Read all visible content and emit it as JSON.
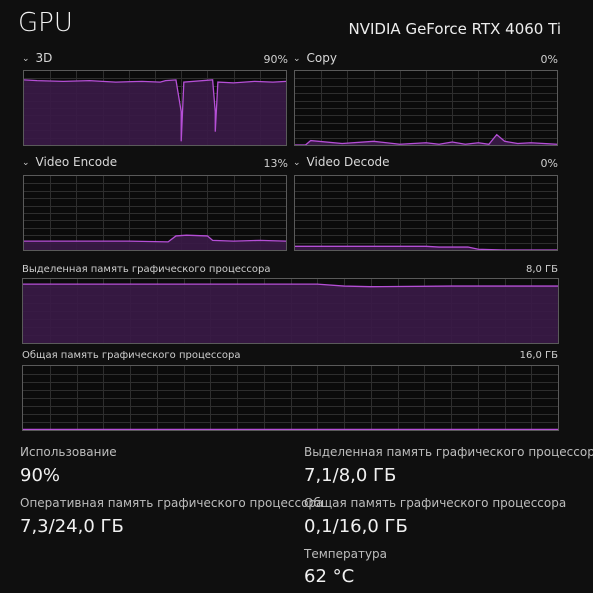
{
  "header": {
    "title": "GPU",
    "model": "NVIDIA GeForce RTX 4060 Ti"
  },
  "engines": [
    {
      "label": "3D",
      "percent": "90%",
      "current_usage": 0.9
    },
    {
      "label": "Copy",
      "percent": "0%",
      "current_usage": 0.0
    },
    {
      "label": "Video Encode",
      "percent": "13%",
      "current_usage": 0.13
    },
    {
      "label": "Video Decode",
      "percent": "0%",
      "current_usage": 0.0
    }
  ],
  "memory_graphs": [
    {
      "label": "Выделенная память графического процессора",
      "max": "8,0 ГБ",
      "current_fraction": 0.89
    },
    {
      "label": "Общая память графического процессора",
      "max": "16,0 ГБ",
      "current_fraction": 0.0
    }
  ],
  "stats": {
    "usage": {
      "label": "Использование",
      "value": "90%"
    },
    "dedicated_memory": {
      "label": "Выделенная память графического процессора",
      "value": "7,1/8,0 ГБ"
    },
    "gpu_memory": {
      "label": "Оперативная память графического процессора",
      "value": "7,3/24,0 ГБ"
    },
    "shared_memory": {
      "label": "Общая память графического процессора",
      "value": "0,1/16,0 ГБ"
    },
    "temperature": {
      "label": "Температура",
      "value": "62 °C"
    }
  },
  "colors": {
    "accent": "#b54fd6",
    "fill": "#3a1a47",
    "grid": "#2e2e2e",
    "border": "#5a5a5a",
    "background": "#0f0f0f"
  }
}
